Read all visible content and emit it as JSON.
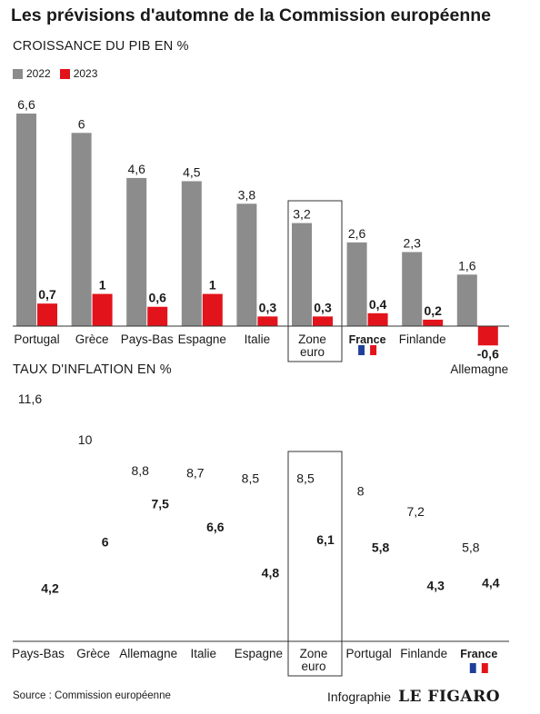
{
  "title": "Les prévisions d'automne de la Commission européenne",
  "credit": {
    "prefix": "Infographie",
    "brand": "LE FIGARO"
  },
  "source": "Source : Commission européenne",
  "colors": {
    "y2022": "#8c8c8c",
    "y2023": "#e3131b",
    "text": "#1a1a1a",
    "axis": "#333333",
    "flag_blue": "#1f3f9a",
    "flag_red": "#e3131b"
  },
  "chart_data": [
    {
      "type": "bar",
      "title": "CROISSANCE DU PIB EN %",
      "categories": [
        "Portugal",
        "Grèce",
        "Pays-Bas",
        "Espagne",
        "Italie",
        "Zone euro",
        "France",
        "Finlande",
        "Allemagne"
      ],
      "series": [
        {
          "name": "2022",
          "values": [
            6.6,
            6,
            4.6,
            4.5,
            3.8,
            3.2,
            2.6,
            2.3,
            1.6
          ]
        },
        {
          "name": "2023",
          "values": [
            0.7,
            1,
            0.6,
            1,
            0.3,
            0.3,
            0.4,
            0.2,
            -0.6
          ]
        }
      ],
      "value_labels": {
        "2022": [
          "6,6",
          "6",
          "4,6",
          "4,5",
          "3,8",
          "3,2",
          "2,6",
          "2,3",
          "1,6"
        ],
        "2023": [
          "0,7",
          "1",
          "0,6",
          "1",
          "0,3",
          "0,3",
          "0,4",
          "0,2",
          "-0,6"
        ]
      },
      "highlight": "Zone euro",
      "bold_category": "France",
      "flag_category": "France",
      "legend": "top-left",
      "grid": false,
      "ylim": [
        -0.6,
        6.6
      ]
    },
    {
      "type": "scatter",
      "title": "TAUX D'INFLATION EN %",
      "categories": [
        "Pays-Bas",
        "Grèce",
        "Allemagne",
        "Italie",
        "Espagne",
        "Zone euro",
        "Portugal",
        "Finlande",
        "France"
      ],
      "series": [
        {
          "name": "2022",
          "values": [
            11.6,
            10,
            8.8,
            8.7,
            8.5,
            8.5,
            8,
            7.2,
            5.8
          ]
        },
        {
          "name": "2023",
          "values": [
            4.2,
            6,
            7.5,
            6.6,
            4.8,
            6.1,
            5.8,
            4.3,
            4.4
          ]
        }
      ],
      "value_labels": {
        "2022": [
          "11,6",
          "10",
          "8,8",
          "8,7",
          "8,5",
          "8,5",
          "8",
          "7,2",
          "5,8"
        ],
        "2023": [
          "4,2",
          "6",
          "7,5",
          "6,6",
          "4,8",
          "6,1",
          "5,8",
          "4,3",
          "4,4"
        ]
      },
      "highlight": "Zone euro",
      "bold_category": "France",
      "flag_category": "France",
      "grid": false
    }
  ]
}
